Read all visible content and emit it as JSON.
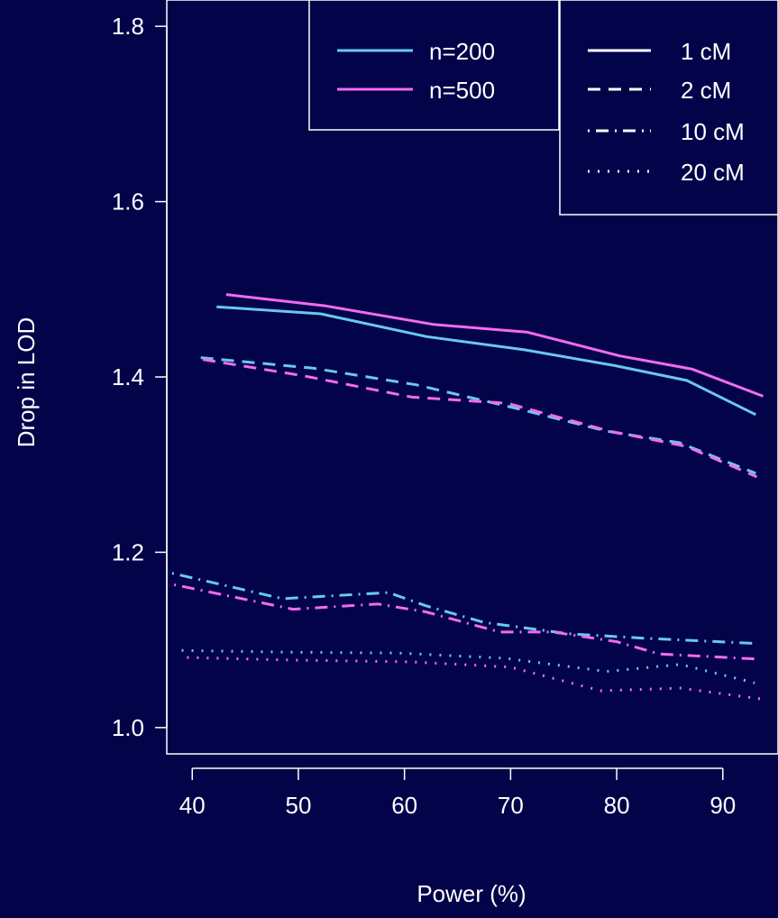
{
  "chart_data": {
    "type": "line",
    "xlabel": "Power (%)",
    "ylabel": "Drop in LOD",
    "xlim": [
      37.6,
      95.2
    ],
    "ylim": [
      0.97,
      1.83
    ],
    "xticks": [
      40,
      50,
      60,
      70,
      80,
      90
    ],
    "yticks": [
      1.0,
      1.2,
      1.4,
      1.6,
      1.8
    ],
    "xtick_labels": [
      "40",
      "50",
      "60",
      "70",
      "80",
      "90"
    ],
    "ytick_labels": [
      "1.0",
      "1.2",
      "1.4",
      "1.6",
      "1.8"
    ],
    "grid": false,
    "colors": {
      "background": "#03034a",
      "foreground": "#ffffff",
      "n200": "#69c8f0",
      "n500": "#f46af0"
    },
    "legend_sample_size": [
      {
        "label": "n=200",
        "color_key": "n200"
      },
      {
        "label": "n=500",
        "color_key": "n500"
      }
    ],
    "legend_distance": [
      {
        "label": "1 cM",
        "dash": "solid"
      },
      {
        "label": "2 cM",
        "dash": "dashed"
      },
      {
        "label": "10 cM",
        "dash": "dotdash"
      },
      {
        "label": "20 cM",
        "dash": "dotted"
      }
    ],
    "series": [
      {
        "n": "n=200",
        "distance": "1 cM",
        "color_key": "n200",
        "dash": "solid",
        "x": [
          42.3,
          52.1,
          62.1,
          71.3,
          79.8,
          86.6,
          93.1
        ],
        "y": [
          1.48,
          1.472,
          1.446,
          1.431,
          1.413,
          1.396,
          1.357
        ]
      },
      {
        "n": "n=500",
        "distance": "1 cM",
        "color_key": "n500",
        "dash": "solid",
        "x": [
          43.2,
          52.6,
          62.7,
          71.6,
          80.3,
          87.1,
          93.8
        ],
        "y": [
          1.494,
          1.481,
          1.46,
          1.451,
          1.424,
          1.409,
          1.378
        ]
      },
      {
        "n": "n=200",
        "distance": "2 cM",
        "color_key": "n200",
        "dash": "dashed",
        "x": [
          40.8,
          51.4,
          61.1,
          70.6,
          79.1,
          85.9,
          93.1
        ],
        "y": [
          1.422,
          1.41,
          1.391,
          1.364,
          1.338,
          1.325,
          1.29
        ]
      },
      {
        "n": "n=500",
        "distance": "2 cM",
        "color_key": "n500",
        "dash": "dashed",
        "x": [
          41.0,
          50.6,
          60.7,
          69.7,
          79.4,
          86.5,
          93.2
        ],
        "y": [
          1.42,
          1.401,
          1.377,
          1.37,
          1.338,
          1.321,
          1.286
        ]
      },
      {
        "n": "n=200",
        "distance": "10 cM",
        "color_key": "n200",
        "dash": "dotdash",
        "x": [
          38.1,
          48.5,
          58.5,
          62.0,
          67.5,
          75.5,
          82.5,
          93.0
        ],
        "y": [
          1.176,
          1.147,
          1.154,
          1.139,
          1.12,
          1.107,
          1.102,
          1.096
        ]
      },
      {
        "n": "n=500",
        "distance": "10 cM",
        "color_key": "n500",
        "dash": "dotdash",
        "x": [
          38.3,
          49.5,
          57.5,
          62.0,
          69.0,
          74.0,
          80.0,
          84.0,
          93.5
        ],
        "y": [
          1.163,
          1.135,
          1.141,
          1.132,
          1.109,
          1.109,
          1.098,
          1.084,
          1.078
        ]
      },
      {
        "n": "n=200",
        "distance": "20 cM",
        "color_key": "n200",
        "dash": "dotted",
        "x": [
          39.0,
          49.0,
          59.5,
          69.5,
          79.0,
          86.0,
          93.0
        ],
        "y": [
          1.088,
          1.086,
          1.085,
          1.079,
          1.064,
          1.072,
          1.051
        ]
      },
      {
        "n": "n=500",
        "distance": "20 cM",
        "color_key": "n500",
        "dash": "dotted",
        "x": [
          39.5,
          49.5,
          60.5,
          70.0,
          78.5,
          86.0,
          94.0
        ],
        "y": [
          1.08,
          1.077,
          1.075,
          1.069,
          1.042,
          1.045,
          1.032
        ]
      }
    ]
  }
}
